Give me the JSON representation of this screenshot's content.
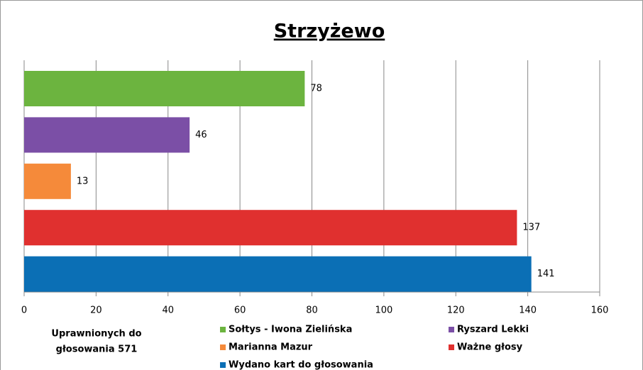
{
  "chart_data": {
    "type": "hbar",
    "title": "Strzyżewo",
    "series": [
      {
        "name": "Sołtys - Iwona Zielińska",
        "color": "#6cb43f",
        "values": [
          78
        ]
      },
      {
        "name": "Ryszard Lekki",
        "color": "#7b4fa6",
        "values": [
          46
        ]
      },
      {
        "name": "Marianna Mazur",
        "color": "#f58a3a",
        "values": [
          13
        ]
      },
      {
        "name": "Ważne głosy",
        "color": "#e0302f",
        "values": [
          137
        ]
      },
      {
        "name": "Wydano kart do głosowania",
        "color": "#0b6fb5",
        "values": [
          141
        ]
      }
    ],
    "xlim": [
      0,
      160
    ],
    "xticks": [
      0,
      20,
      40,
      60,
      80,
      100,
      120,
      140,
      160
    ],
    "grid": true,
    "annotation": [
      "Uprawnionych do",
      "głosowania  571"
    ]
  }
}
